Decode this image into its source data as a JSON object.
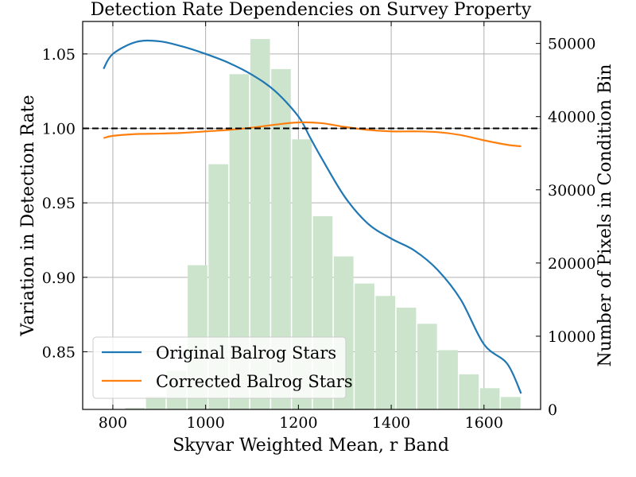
{
  "chart_data": {
    "type": "bar+line",
    "title": "Detection Rate Dependencies on Survey Property",
    "xlabel": "Skyvar Weighted Mean, r Band",
    "ylabel_left": "Variation in Detection Rate",
    "ylabel_right": "Number of Pixels in Condition Bin",
    "xlim": [
      735,
      1722
    ],
    "ylim_left": [
      0.8113,
      1.0718
    ],
    "ylim_right": [
      0,
      53000
    ],
    "xticks": [
      800,
      1000,
      1200,
      1400,
      1600
    ],
    "yticks_left": [
      0.85,
      0.9,
      0.95,
      1.0,
      1.05
    ],
    "yticks_left_labels": [
      "0.85",
      "0.90",
      "0.95",
      "1.00",
      "1.05"
    ],
    "yticks_right": [
      0,
      10000,
      20000,
      30000,
      40000,
      50000
    ],
    "yticks_right_labels": [
      "0",
      "10000",
      "20000",
      "30000",
      "40000",
      "50000"
    ],
    "grid": true,
    "reference_line": 1.0,
    "histogram": {
      "color": "#cce4cc",
      "bin_edges": [
        780,
        825,
        870,
        915,
        960,
        1005,
        1050,
        1095,
        1140,
        1185,
        1230,
        1275,
        1320,
        1365,
        1410,
        1455,
        1500,
        1545,
        1590,
        1635,
        1680
      ],
      "counts": [
        0,
        200,
        1800,
        5300,
        19700,
        33500,
        45800,
        50600,
        46500,
        36900,
        26400,
        20900,
        17200,
        15500,
        13900,
        11700,
        8100,
        4800,
        2900,
        1700
      ]
    },
    "series": [
      {
        "name": "Original Balrog Stars",
        "color": "#1f77b4",
        "x": [
          780,
          800,
          850,
          900,
          950,
          1000,
          1050,
          1100,
          1150,
          1200,
          1225,
          1250,
          1300,
          1350,
          1400,
          1450,
          1500,
          1550,
          1600,
          1650,
          1680
        ],
        "y": [
          1.04,
          1.05,
          1.058,
          1.0585,
          1.055,
          1.05,
          1.044,
          1.036,
          1.025,
          1.008,
          0.994,
          0.98,
          0.954,
          0.936,
          0.926,
          0.918,
          0.905,
          0.885,
          0.855,
          0.842,
          0.822
        ]
      },
      {
        "name": "Corrected Balrog Stars",
        "color": "#ff7f0e",
        "x": [
          780,
          800,
          850,
          900,
          950,
          1000,
          1050,
          1100,
          1150,
          1200,
          1250,
          1300,
          1350,
          1400,
          1450,
          1500,
          1550,
          1600,
          1650,
          1680
        ],
        "y": [
          0.9935,
          0.995,
          0.9962,
          0.9965,
          0.997,
          0.998,
          0.999,
          1.0005,
          1.0025,
          1.004,
          1.0035,
          1.001,
          0.999,
          0.998,
          0.998,
          0.9975,
          0.9955,
          0.992,
          0.989,
          0.988
        ]
      }
    ],
    "legend_position": "lower-left"
  }
}
